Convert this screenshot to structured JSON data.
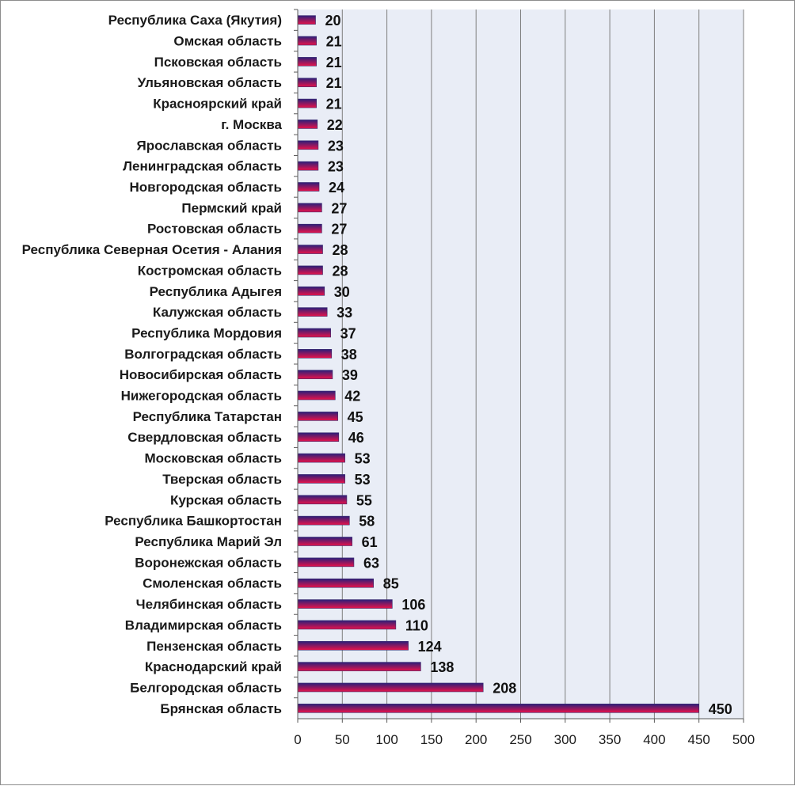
{
  "colors": {
    "plot_bg": "#e9edf6",
    "grid": "#7f7f7f",
    "axis": "#595959",
    "bar_top": "#2b1f7a",
    "bar_bottom": "#e8124a"
  },
  "chart_data": {
    "type": "bar",
    "orientation": "horizontal",
    "categories": [
      "Республика Саха (Якутия)",
      "Омская область",
      "Псковская область",
      "Ульяновская область",
      "Красноярский край",
      "г. Москва",
      "Ярославская область",
      "Ленинградская область",
      "Новгородская область",
      "Пермский край",
      "Ростовская область",
      "Республика Северная Осетия - Алания",
      "Костромская область",
      "Республика Адыгея",
      "Калужская область",
      "Республика Мордовия",
      "Волгоградская область",
      "Новосибирская область",
      "Нижегородская область",
      "Республика Татарстан",
      "Свердловская область",
      "Московская область",
      "Тверская область",
      "Курская область",
      "Республика Башкортостан",
      "Республика Марий Эл",
      "Воронежская область",
      "Смоленская область",
      "Челябинская область",
      "Владимирская область",
      "Пензенская область",
      "Краснодарский край",
      "Белгородская область",
      "Брянская область"
    ],
    "values": [
      20,
      21,
      21,
      21,
      21,
      22,
      23,
      23,
      24,
      27,
      27,
      28,
      28,
      30,
      33,
      37,
      38,
      39,
      42,
      45,
      46,
      53,
      53,
      55,
      58,
      61,
      63,
      85,
      106,
      110,
      124,
      138,
      208,
      450
    ],
    "value_labels": [
      "20",
      "21",
      "21",
      "21",
      "21",
      "22",
      "23",
      "23",
      "24",
      "27",
      "27",
      "28",
      "28",
      "30",
      "33",
      "37",
      "38",
      "39",
      "42",
      "45",
      "46",
      "53",
      "53",
      "55",
      "58",
      "61",
      "63",
      "85",
      "106",
      "110",
      "124",
      "138",
      "208",
      "450"
    ],
    "xlim": [
      0,
      500
    ],
    "x_ticks": [
      "0",
      "50",
      "100",
      "150",
      "200",
      "250",
      "300",
      "350",
      "400",
      "450",
      "500"
    ],
    "grid": "vertical",
    "legend": "none",
    "title": "",
    "xlabel": "",
    "ylabel": ""
  }
}
